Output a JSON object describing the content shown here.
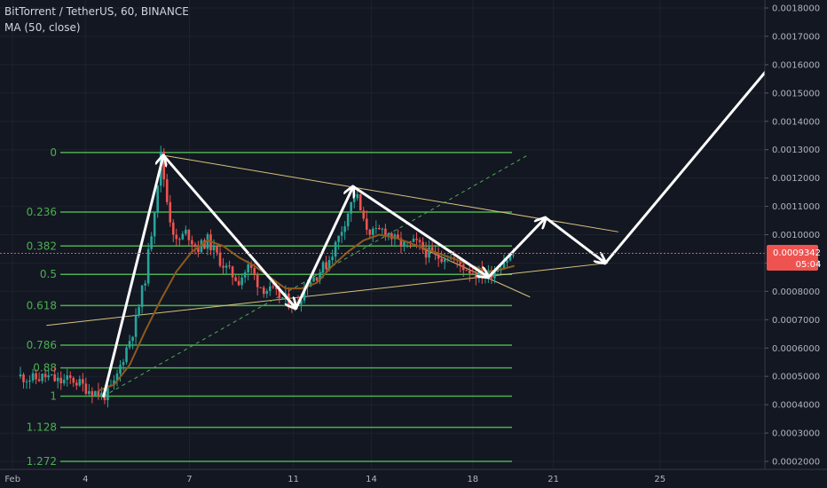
{
  "header": {
    "title": "BitTorrent / TetherUS, 60, BINANCE",
    "indicator": "MA (50, close)"
  },
  "price_tag": {
    "price": "0.0009342",
    "countdown": "05:04"
  },
  "colors": {
    "background": "#131722",
    "fib_line": "#4caf50",
    "trend_line": "#d8c37a",
    "arrows": "#ffffff",
    "ma_line": "#8d5a1e",
    "candle_up": "#26a69a",
    "candle_down": "#ef5350",
    "price_tag": "#ef5350"
  },
  "chart_data": {
    "type": "candlestick",
    "title": "BitTorrent / TetherUS, 60, BINANCE",
    "xlabel": "",
    "ylabel": "",
    "x_ticks": [
      "Feb",
      "4",
      "7",
      "11",
      "14",
      "18",
      "21",
      "25"
    ],
    "y_ticks": [
      "0.0002000",
      "0.0003000",
      "0.0004000",
      "0.0005000",
      "0.0006000",
      "0.0007000",
      "0.0008000",
      "0.0009000",
      "0.0010000",
      "0.0011000",
      "0.0012000",
      "0.0013000",
      "0.0014000",
      "0.0015000",
      "0.0016000",
      "0.0017000",
      "0.0018000"
    ],
    "ylim": [
      0.0002,
      0.0018
    ],
    "last_price": 0.0009342,
    "fib_levels": [
      {
        "label": "0",
        "price": 0.00129
      },
      {
        "label": "0.236",
        "price": 0.00108
      },
      {
        "label": "0.382",
        "price": 0.00096
      },
      {
        "label": "0.5",
        "price": 0.00086
      },
      {
        "label": "0.618",
        "price": 0.00075
      },
      {
        "label": "0.786",
        "price": 0.00061
      },
      {
        "label": "0.88",
        "price": 0.00053
      },
      {
        "label": "1",
        "price": 0.00043
      },
      {
        "label": "1.128",
        "price": 0.00032
      },
      {
        "label": "1.272",
        "price": 0.0002
      }
    ],
    "pattern_path": [
      {
        "day": 3.2,
        "price": 0.00043
      },
      {
        "day": 5.5,
        "price": 0.00128
      },
      {
        "day": 10.6,
        "price": 0.00074
      },
      {
        "day": 12.8,
        "price": 0.00117
      },
      {
        "day": 18.0,
        "price": 0.00085
      },
      {
        "day": 20.2,
        "price": 0.00106
      },
      {
        "day": 22.5,
        "price": 0.0009
      },
      {
        "day": 29.8,
        "price": 0.0017
      }
    ],
    "trend_lines": [
      {
        "points": [
          {
            "day": 1.0,
            "price": 0.00068
          },
          {
            "day": 22.6,
            "price": 0.0009
          }
        ]
      },
      {
        "points": [
          {
            "day": 5.5,
            "price": 0.00128
          },
          {
            "day": 23.0,
            "price": 0.00101
          }
        ]
      },
      {
        "points": [
          {
            "day": 15.5,
            "price": 0.00095
          },
          {
            "day": 19.6,
            "price": 0.00078
          }
        ]
      }
    ],
    "dashed_line": {
      "points": [
        {
          "day": 3.2,
          "price": 0.00043
        },
        {
          "day": 19.5,
          "price": 0.00128
        }
      ]
    },
    "ma50": [
      {
        "day": 3.0,
        "price": 0.00045
      },
      {
        "day": 3.6,
        "price": 0.00047
      },
      {
        "day": 4.2,
        "price": 0.00054
      },
      {
        "day": 4.8,
        "price": 0.00066
      },
      {
        "day": 5.4,
        "price": 0.00077
      },
      {
        "day": 6.0,
        "price": 0.00087
      },
      {
        "day": 6.6,
        "price": 0.00094
      },
      {
        "day": 7.2,
        "price": 0.00098
      },
      {
        "day": 7.8,
        "price": 0.00096
      },
      {
        "day": 8.4,
        "price": 0.00092
      },
      {
        "day": 9.0,
        "price": 0.00089
      },
      {
        "day": 9.6,
        "price": 0.00085
      },
      {
        "day": 10.2,
        "price": 0.00081
      },
      {
        "day": 10.8,
        "price": 0.00081
      },
      {
        "day": 11.4,
        "price": 0.00083
      },
      {
        "day": 12.0,
        "price": 0.00089
      },
      {
        "day": 12.6,
        "price": 0.00094
      },
      {
        "day": 13.2,
        "price": 0.00098
      },
      {
        "day": 13.8,
        "price": 0.001
      },
      {
        "day": 14.4,
        "price": 0.00099
      },
      {
        "day": 15.0,
        "price": 0.00097
      },
      {
        "day": 15.6,
        "price": 0.00095
      },
      {
        "day": 16.2,
        "price": 0.00093
      },
      {
        "day": 16.8,
        "price": 0.00091
      },
      {
        "day": 17.4,
        "price": 0.00089
      },
      {
        "day": 18.0,
        "price": 0.00087
      },
      {
        "day": 18.6,
        "price": 0.00088
      },
      {
        "day": 19.0,
        "price": 0.00089
      }
    ],
    "price_path": [
      {
        "day": 0.0,
        "price": 0.0005
      },
      {
        "day": 0.5,
        "price": 0.00049
      },
      {
        "day": 1.0,
        "price": 0.0005
      },
      {
        "day": 1.5,
        "price": 0.00048
      },
      {
        "day": 2.0,
        "price": 0.00049
      },
      {
        "day": 2.5,
        "price": 0.00046
      },
      {
        "day": 3.0,
        "price": 0.00044
      },
      {
        "day": 3.2,
        "price": 0.00043
      },
      {
        "day": 3.6,
        "price": 0.00047
      },
      {
        "day": 4.0,
        "price": 0.00058
      },
      {
        "day": 4.4,
        "price": 0.00068
      },
      {
        "day": 4.8,
        "price": 0.00085
      },
      {
        "day": 5.1,
        "price": 0.00105
      },
      {
        "day": 5.4,
        "price": 0.00128
      },
      {
        "day": 5.7,
        "price": 0.00108
      },
      {
        "day": 6.0,
        "price": 0.00097
      },
      {
        "day": 6.4,
        "price": 0.00101
      },
      {
        "day": 6.8,
        "price": 0.00095
      },
      {
        "day": 7.2,
        "price": 0.00098
      },
      {
        "day": 7.6,
        "price": 0.00092
      },
      {
        "day": 8.0,
        "price": 0.00087
      },
      {
        "day": 8.4,
        "price": 0.00084
      },
      {
        "day": 8.8,
        "price": 0.00089
      },
      {
        "day": 9.2,
        "price": 0.00082
      },
      {
        "day": 9.6,
        "price": 0.0008
      },
      {
        "day": 10.0,
        "price": 0.00078
      },
      {
        "day": 10.6,
        "price": 0.00075
      },
      {
        "day": 11.0,
        "price": 0.00083
      },
      {
        "day": 11.4,
        "price": 0.00086
      },
      {
        "day": 11.8,
        "price": 0.0009
      },
      {
        "day": 12.2,
        "price": 0.00098
      },
      {
        "day": 12.6,
        "price": 0.00108
      },
      {
        "day": 12.9,
        "price": 0.00115
      },
      {
        "day": 13.2,
        "price": 0.00104
      },
      {
        "day": 13.6,
        "price": 0.001
      },
      {
        "day": 14.0,
        "price": 0.00102
      },
      {
        "day": 14.4,
        "price": 0.00098
      },
      {
        "day": 14.8,
        "price": 0.00096
      },
      {
        "day": 15.2,
        "price": 0.00097
      },
      {
        "day": 15.6,
        "price": 0.00094
      },
      {
        "day": 16.0,
        "price": 0.00092
      },
      {
        "day": 16.4,
        "price": 0.00093
      },
      {
        "day": 16.8,
        "price": 0.0009
      },
      {
        "day": 17.2,
        "price": 0.00088
      },
      {
        "day": 17.6,
        "price": 0.00086
      },
      {
        "day": 18.0,
        "price": 0.00086
      },
      {
        "day": 18.3,
        "price": 0.00088
      },
      {
        "day": 18.6,
        "price": 0.00091
      },
      {
        "day": 19.0,
        "price": 0.00093
      }
    ]
  }
}
